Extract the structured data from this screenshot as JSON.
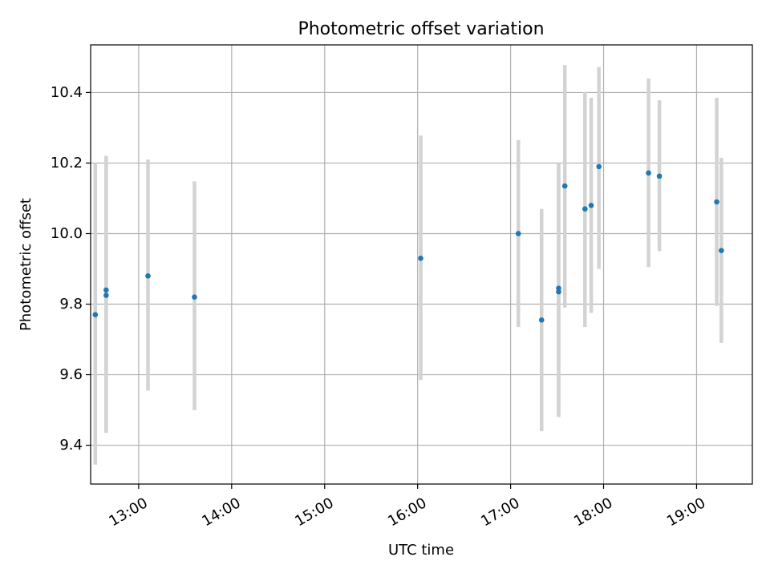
{
  "chart_data": {
    "type": "scatter",
    "title": "Photometric offset variation",
    "xlabel": "UTC time",
    "ylabel": "Photometric offset",
    "x_axis": {
      "kind": "time",
      "range": [
        "12:29",
        "19:36"
      ],
      "ticks": [
        "13:00",
        "14:00",
        "15:00",
        "16:00",
        "17:00",
        "18:00",
        "19:00"
      ]
    },
    "y_axis": {
      "range": [
        9.29,
        10.535
      ],
      "ticks": [
        "9.4",
        "9.6",
        "9.8",
        "10.0",
        "10.2",
        "10.4"
      ]
    },
    "grid": true,
    "colors": {
      "point": "#1f77b4",
      "errorbar": "#d3d3d3",
      "grid": "#b0b0b0",
      "axes": "#000000"
    },
    "series": [
      {
        "points": [
          {
            "t": "12:32",
            "y": 9.77,
            "low": 9.345,
            "high": 10.2
          },
          {
            "t": "12:39",
            "y": 9.84,
            "low": 9.435,
            "high": 10.22
          },
          {
            "t": "12:39",
            "y": 9.825,
            "low": 9.435,
            "high": 10.22
          },
          {
            "t": "13:06",
            "y": 9.88,
            "low": 9.555,
            "high": 10.21
          },
          {
            "t": "13:36",
            "y": 9.82,
            "low": 9.5,
            "high": 10.148
          },
          {
            "t": "16:02",
            "y": 9.93,
            "low": 9.585,
            "high": 10.278
          },
          {
            "t": "17:05",
            "y": 10.0,
            "low": 9.735,
            "high": 10.265
          },
          {
            "t": "17:20",
            "y": 9.755,
            "low": 9.44,
            "high": 10.07
          },
          {
            "t": "17:31",
            "y": 9.835,
            "low": 9.48,
            "high": 10.2
          },
          {
            "t": "17:31",
            "y": 9.845,
            "low": 9.49,
            "high": 10.2
          },
          {
            "t": "17:35",
            "y": 10.135,
            "low": 9.79,
            "high": 10.478
          },
          {
            "t": "17:48",
            "y": 10.07,
            "low": 9.735,
            "high": 10.402
          },
          {
            "t": "17:52",
            "y": 10.08,
            "low": 9.775,
            "high": 10.385
          },
          {
            "t": "17:57",
            "y": 10.19,
            "low": 9.9,
            "high": 10.472
          },
          {
            "t": "18:29",
            "y": 10.172,
            "low": 9.905,
            "high": 10.44
          },
          {
            "t": "18:36",
            "y": 10.163,
            "low": 9.95,
            "high": 10.378
          },
          {
            "t": "19:13",
            "y": 10.09,
            "low": 9.795,
            "high": 10.385
          },
          {
            "t": "19:16",
            "y": 9.952,
            "low": 9.69,
            "high": 10.215
          }
        ]
      }
    ]
  }
}
